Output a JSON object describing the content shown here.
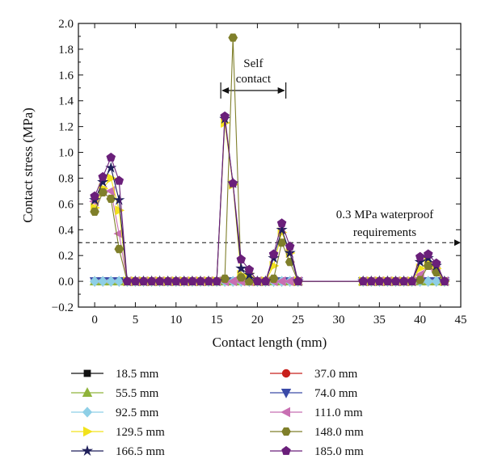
{
  "chart_data": {
    "type": "line",
    "title": "",
    "xlabel": "Contact length (mm)",
    "ylabel": "Contact stress (MPa)",
    "xlim": [
      -2,
      45
    ],
    "ylim": [
      -0.2,
      2.0
    ],
    "x_ticks": [
      "0",
      "5",
      "10",
      "15",
      "20",
      "25",
      "30",
      "35",
      "40",
      "45"
    ],
    "y_ticks": [
      "-0.2",
      "0.0",
      "0.2",
      "0.4",
      "0.6",
      "0.8",
      "1.0",
      "1.2",
      "1.4",
      "1.6",
      "1.8",
      "2.0"
    ],
    "grid": false,
    "legend_position": "bottom",
    "x_marker_positions": [
      0,
      1,
      2,
      3,
      4,
      5,
      6,
      7,
      8,
      9,
      10,
      11,
      12,
      13,
      14,
      15,
      16,
      17,
      18,
      19,
      20,
      21,
      22,
      23,
      24,
      25,
      33,
      34,
      35,
      36,
      37,
      38,
      39,
      40,
      41,
      42,
      43
    ],
    "series": [
      {
        "name": "18.5 mm",
        "color": "#111111",
        "marker": "square",
        "peaks": []
      },
      {
        "name": "37.0 mm",
        "color": "#c8201c",
        "marker": "circle",
        "peaks": []
      },
      {
        "name": "55.5 mm",
        "color": "#8fb33a",
        "marker": "triangle-up",
        "peaks": []
      },
      {
        "name": "74.0 mm",
        "color": "#3a4aa8",
        "marker": "triangle-down",
        "peaks": []
      },
      {
        "name": "92.5 mm",
        "color": "#8ecfe6",
        "marker": "diamond",
        "peaks": []
      },
      {
        "name": "111.0 mm",
        "color": "#c86fb2",
        "marker": "triangle-left",
        "peaks": [
          [
            0,
            0.62
          ],
          [
            1,
            0.7
          ],
          [
            2,
            0.7
          ],
          [
            3,
            0.37
          ],
          [
            40,
            0.05
          ],
          [
            41,
            0.12
          ],
          [
            42,
            0.08
          ]
        ]
      },
      {
        "name": "129.5 mm",
        "color": "#f2e21c",
        "marker": "triangle-right",
        "peaks": [
          [
            0,
            0.57
          ],
          [
            1,
            0.72
          ],
          [
            2,
            0.8
          ],
          [
            3,
            0.55
          ],
          [
            16,
            1.23
          ],
          [
            17,
            0.75
          ],
          [
            18,
            0.05
          ],
          [
            19,
            0.06
          ],
          [
            22,
            0.12
          ],
          [
            23,
            0.38
          ],
          [
            24,
            0.22
          ],
          [
            40,
            0.1
          ],
          [
            41,
            0.15
          ],
          [
            42,
            0.1
          ]
        ]
      },
      {
        "name": "148.0 mm",
        "color": "#7f7f2a",
        "marker": "hexagon",
        "peaks": [
          [
            0,
            0.54
          ],
          [
            1,
            0.69
          ],
          [
            2,
            0.64
          ],
          [
            3,
            0.25
          ],
          [
            16,
            0.02
          ],
          [
            17,
            1.89
          ],
          [
            18,
            0.03
          ],
          [
            22,
            0.02
          ],
          [
            23,
            0.3
          ],
          [
            24,
            0.15
          ],
          [
            40,
            0.01
          ],
          [
            41,
            0.12
          ],
          [
            42,
            0.07
          ]
        ]
      },
      {
        "name": "166.5 mm",
        "color": "#1f1f5a",
        "marker": "star",
        "peaks": [
          [
            0,
            0.63
          ],
          [
            1,
            0.77
          ],
          [
            2,
            0.88
          ],
          [
            3,
            0.63
          ],
          [
            16,
            1.26
          ],
          [
            17,
            0.76
          ],
          [
            18,
            0.1
          ],
          [
            19,
            0.05
          ],
          [
            22,
            0.18
          ],
          [
            23,
            0.4
          ],
          [
            24,
            0.22
          ],
          [
            40,
            0.15
          ],
          [
            41,
            0.18
          ],
          [
            42,
            0.12
          ]
        ]
      },
      {
        "name": "185.0 mm",
        "color": "#6a1f7a",
        "marker": "pentagon",
        "peaks": [
          [
            0,
            0.66
          ],
          [
            1,
            0.81
          ],
          [
            2,
            0.96
          ],
          [
            3,
            0.78
          ],
          [
            16,
            1.28
          ],
          [
            17,
            0.76
          ],
          [
            18,
            0.17
          ],
          [
            19,
            0.09
          ],
          [
            22,
            0.21
          ],
          [
            23,
            0.45
          ],
          [
            24,
            0.27
          ],
          [
            40,
            0.19
          ],
          [
            41,
            0.21
          ],
          [
            42,
            0.14
          ]
        ]
      }
    ],
    "annotations": {
      "self_contact_label": [
        "Self",
        "contact"
      ],
      "self_contact_range": [
        15.5,
        23.5
      ],
      "self_contact_y": 1.48,
      "waterproof_label": [
        "0.3 MPa waterproof",
        "requirements"
      ],
      "waterproof_value": 0.3
    }
  }
}
